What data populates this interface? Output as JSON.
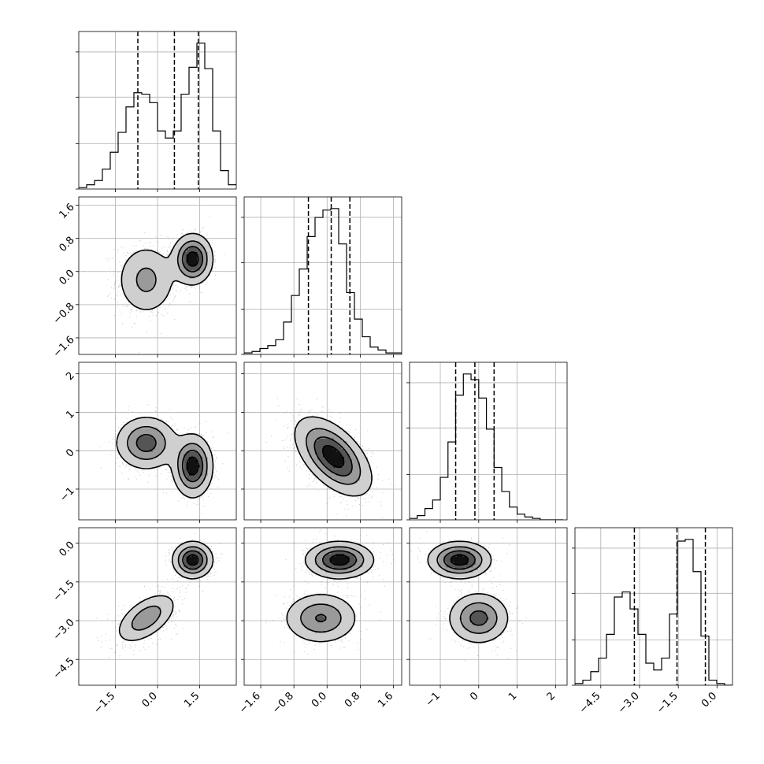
{
  "chart_data": {
    "type": "corner",
    "n_params": 4,
    "grid": true,
    "colors": {
      "line": "#000000",
      "grid": "#b0b0b0",
      "points": "#555555"
    },
    "params": [
      {
        "index": 0,
        "range": [
          -2.8,
          2.8
        ],
        "ticks": [
          -1.5,
          0.0,
          1.5
        ],
        "tick_labels": [
          "−1.5",
          "0.0",
          "1.5"
        ],
        "quantiles": [
          -0.7,
          0.6,
          1.45
        ],
        "hist": {
          "edges_start": -2.8,
          "bin_width": 0.28,
          "counts": [
            1,
            3,
            6,
            14,
            26,
            40,
            58,
            68,
            67,
            61,
            41,
            36,
            41,
            67,
            86,
            103,
            85,
            41,
            13,
            3
          ]
        }
      },
      {
        "index": 1,
        "range": [
          -2.0,
          1.8
        ],
        "ticks": [
          -1.6,
          -0.8,
          0.0,
          0.8,
          1.6
        ],
        "tick_labels": [
          "−1.6",
          "−0.8",
          "0.0",
          "0.8",
          "1.6"
        ],
        "quantiles": [
          -0.45,
          0.1,
          0.55
        ],
        "hist": {
          "edges_start": -2.0,
          "bin_width": 0.19,
          "counts": [
            1,
            2,
            4,
            6,
            10,
            22,
            40,
            58,
            80,
            93,
            98,
            99,
            75,
            42,
            24,
            12,
            5,
            3,
            1,
            1
          ]
        }
      },
      {
        "index": 2,
        "range": [
          -1.8,
          2.3
        ],
        "ticks": [
          -1,
          0,
          1,
          2
        ],
        "tick_labels": [
          "−1",
          "0",
          "1",
          "2"
        ],
        "quantiles": [
          -0.6,
          -0.1,
          0.4
        ],
        "hist": {
          "edges_start": -1.8,
          "bin_width": 0.2,
          "counts": [
            1,
            3,
            8,
            14,
            30,
            55,
            88,
            103,
            99,
            86,
            64,
            37,
            20,
            9,
            4,
            2,
            1,
            0,
            0,
            0
          ]
        }
      },
      {
        "index": 3,
        "range": [
          -5.5,
          0.6
        ],
        "ticks": [
          -4.5,
          -3.0,
          -1.5,
          0.0
        ],
        "tick_labels": [
          "−4.5",
          "−3.0",
          "−1.5",
          "0.0"
        ],
        "quantiles": [
          -3.2,
          -1.55,
          -0.45
        ],
        "hist": {
          "edges_start": -5.5,
          "bin_width": 0.305,
          "counts": [
            1,
            3,
            8,
            16,
            30,
            52,
            55,
            45,
            30,
            13,
            9,
            16,
            42,
            85,
            86,
            67,
            29,
            3,
            1,
            0
          ]
        }
      }
    ],
    "pairs": {
      "1,0": {
        "components": [
          {
            "mean": [
              -0.4,
              -0.2
            ],
            "sd": [
              0.55,
              0.45
            ],
            "rho": 0.0,
            "w": 0.5
          },
          {
            "mean": [
              1.25,
              0.3
            ],
            "sd": [
              0.35,
              0.3
            ],
            "rho": 0.0,
            "w": 0.5
          }
        ]
      },
      "2,0": {
        "components": [
          {
            "mean": [
              -0.4,
              0.2
            ],
            "sd": [
              0.55,
              0.35
            ],
            "rho": 0.0,
            "w": 0.5
          },
          {
            "mean": [
              1.25,
              -0.4
            ],
            "sd": [
              0.35,
              0.4
            ],
            "rho": 0.0,
            "w": 0.5
          }
        ]
      },
      "2,1": {
        "components": [
          {
            "mean": [
              0.15,
              -0.15
            ],
            "sd": [
              0.45,
              0.5
            ],
            "rho": -0.55,
            "w": 1.0
          }
        ]
      },
      "3,0": {
        "components": [
          {
            "mean": [
              -0.4,
              -2.9
            ],
            "sd": [
              0.55,
              0.5
            ],
            "rho": 0.55,
            "w": 0.5
          },
          {
            "mean": [
              1.25,
              -0.65
            ],
            "sd": [
              0.35,
              0.35
            ],
            "rho": 0.0,
            "w": 0.5
          }
        ]
      },
      "3,1": {
        "components": [
          {
            "mean": [
              -0.15,
              -2.9
            ],
            "sd": [
              0.45,
              0.5
            ],
            "rho": 0.0,
            "w": 0.5
          },
          {
            "mean": [
              0.3,
              -0.65
            ],
            "sd": [
              0.4,
              0.35
            ],
            "rho": 0.0,
            "w": 0.5
          }
        ]
      },
      "3,2": {
        "components": [
          {
            "mean": [
              0.0,
              -2.9
            ],
            "sd": [
              0.4,
              0.5
            ],
            "rho": 0.0,
            "w": 0.5
          },
          {
            "mean": [
              -0.5,
              -0.65
            ],
            "sd": [
              0.4,
              0.35
            ],
            "rho": 0.0,
            "w": 0.5
          }
        ]
      }
    },
    "contour_levels": [
      0.12,
      0.35,
      0.6,
      0.85
    ]
  }
}
